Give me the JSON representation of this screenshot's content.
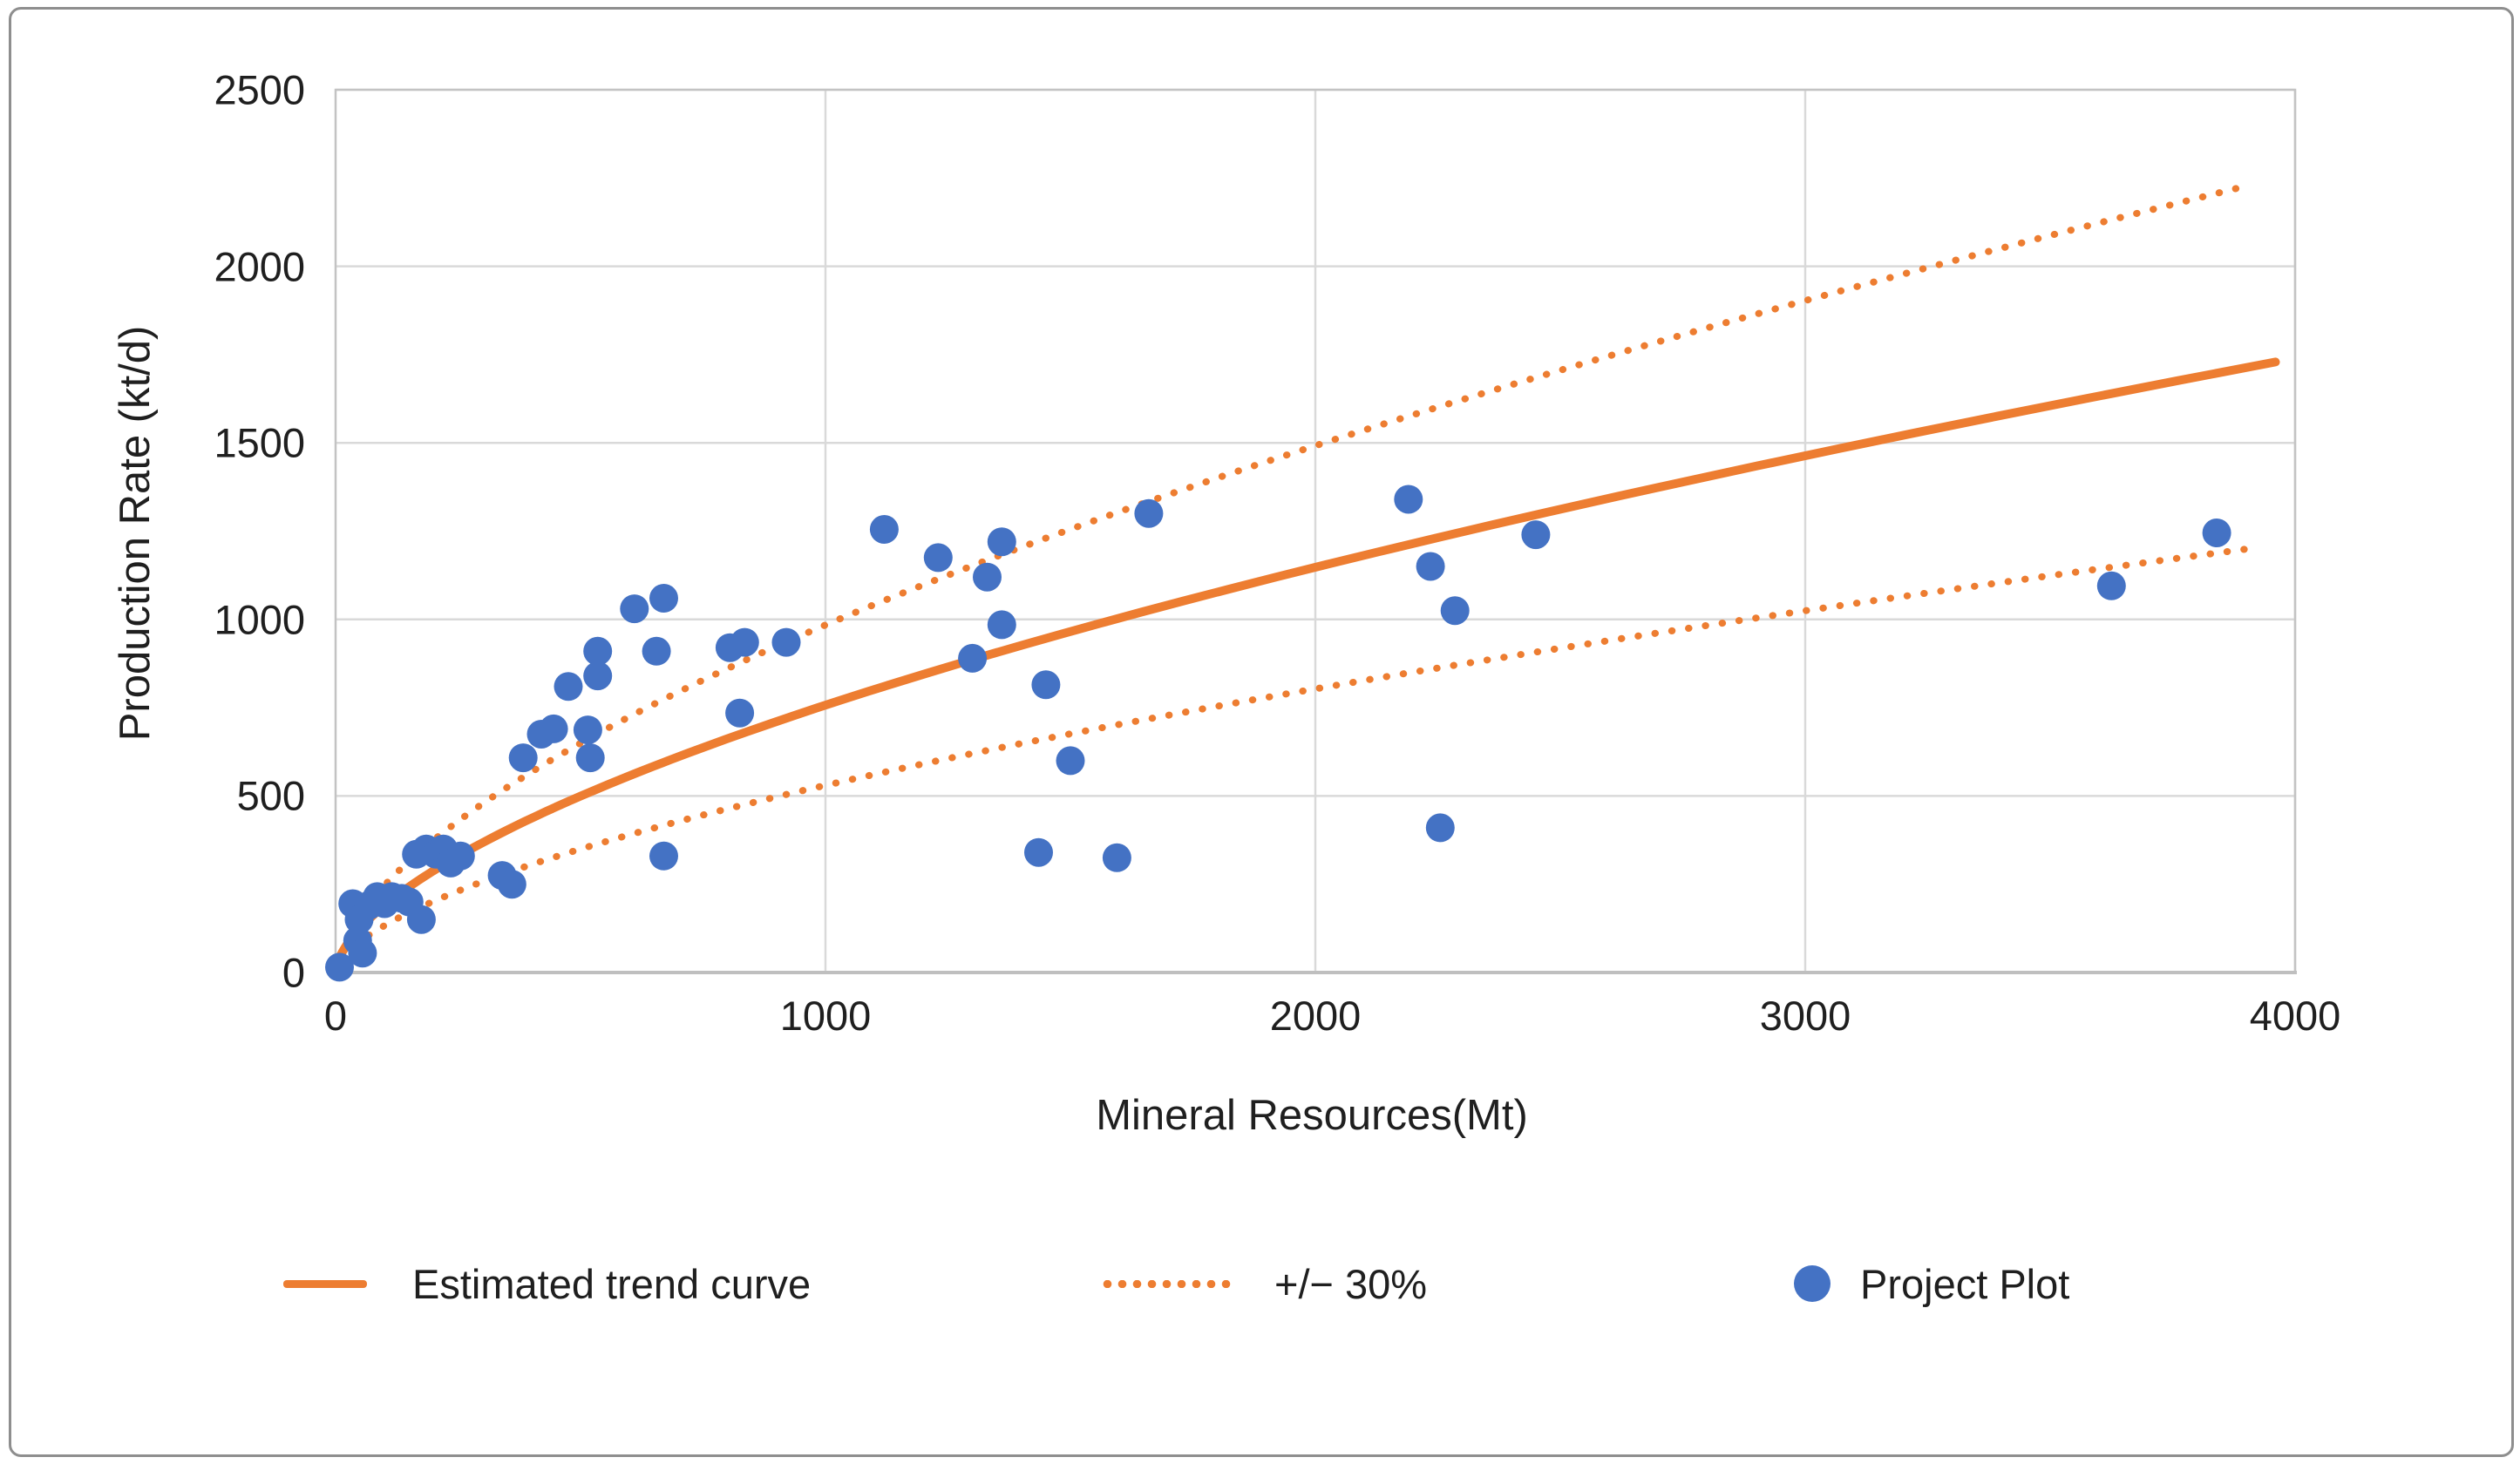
{
  "chart_data": {
    "type": "scatter",
    "title": "",
    "xlabel": "Mineral Resources(Mt)",
    "ylabel": "Production Rate (kt/d)",
    "xlim": [
      0,
      4000
    ],
    "ylim": [
      0,
      2500
    ],
    "x_ticks": [
      0,
      1000,
      2000,
      3000,
      4000
    ],
    "y_ticks": [
      0,
      500,
      1000,
      1500,
      2000,
      2500
    ],
    "grid": true,
    "legend_position": "bottom",
    "series": [
      {
        "name": "Project Plot",
        "type": "scatter",
        "color": "#4472C4",
        "points": [
          [
            8,
            15
          ],
          [
            45,
            90
          ],
          [
            55,
            55
          ],
          [
            35,
            195
          ],
          [
            48,
            150
          ],
          [
            68,
            190
          ],
          [
            85,
            215
          ],
          [
            100,
            195
          ],
          [
            115,
            215
          ],
          [
            135,
            210
          ],
          [
            150,
            200
          ],
          [
            175,
            150
          ],
          [
            165,
            335
          ],
          [
            185,
            350
          ],
          [
            205,
            335
          ],
          [
            220,
            350
          ],
          [
            235,
            310
          ],
          [
            255,
            330
          ],
          [
            340,
            275
          ],
          [
            360,
            250
          ],
          [
            383,
            608
          ],
          [
            420,
            675
          ],
          [
            445,
            690
          ],
          [
            475,
            810
          ],
          [
            515,
            687
          ],
          [
            520,
            608
          ],
          [
            535,
            840
          ],
          [
            535,
            910
          ],
          [
            610,
            1030
          ],
          [
            655,
            910
          ],
          [
            670,
            1060
          ],
          [
            670,
            330
          ],
          [
            805,
            920
          ],
          [
            835,
            935
          ],
          [
            920,
            935
          ],
          [
            825,
            735
          ],
          [
            1120,
            1255
          ],
          [
            1230,
            1175
          ],
          [
            1300,
            890
          ],
          [
            1330,
            1120
          ],
          [
            1360,
            1220
          ],
          [
            1360,
            985
          ],
          [
            1450,
            815
          ],
          [
            1500,
            600
          ],
          [
            1435,
            340
          ],
          [
            1595,
            325
          ],
          [
            1660,
            1300
          ],
          [
            2190,
            1340
          ],
          [
            2235,
            1150
          ],
          [
            2285,
            1025
          ],
          [
            2255,
            410
          ],
          [
            2450,
            1240
          ],
          [
            3625,
            1095
          ],
          [
            3840,
            1245
          ]
        ]
      },
      {
        "name": "Estimated trend curve",
        "type": "power_curve",
        "color": "#ED7D31",
        "formula": "y = 12 * x^0.6",
        "a": 12,
        "b": 0.6,
        "x_range": [
          8,
          3960
        ]
      },
      {
        "name": "+/− 30%",
        "type": "band",
        "color": "#ED7D31",
        "factors": [
          0.7,
          1.3
        ],
        "x_range": [
          40,
          3900
        ]
      }
    ]
  },
  "legend": {
    "items": [
      {
        "label": "Estimated trend curve",
        "swatch": "line"
      },
      {
        "label": "+/− 30%",
        "swatch": "dotted"
      },
      {
        "label": "Project Plot",
        "swatch": "dot"
      }
    ]
  },
  "colors": {
    "accent_orange": "#ED7D31",
    "accent_blue": "#4472C4",
    "gridline": "#D9D9D9",
    "plot_border": "#C3C3C3",
    "axis_line": "#BFBFBF",
    "text": "#1f1f1f",
    "frame_border": "#8e8e8e"
  }
}
